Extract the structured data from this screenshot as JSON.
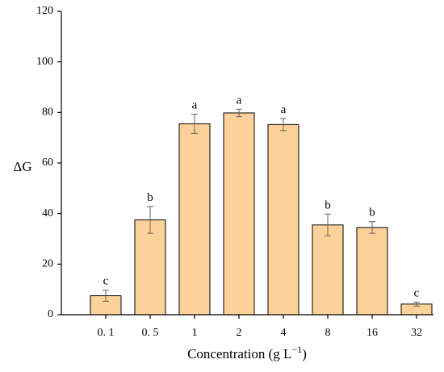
{
  "chart_data": {
    "type": "bar",
    "categories": [
      "0. 1",
      "0. 5",
      "1",
      "2",
      "4",
      "8",
      "16",
      "32"
    ],
    "values": [
      7.5,
      37.5,
      75.5,
      79.8,
      75.2,
      35.5,
      34.5,
      4.2
    ],
    "errors": [
      2.2,
      5.3,
      3.8,
      1.5,
      2.4,
      4.3,
      2.3,
      0.8
    ],
    "significance": [
      "c",
      "b",
      "a",
      "a",
      "a",
      "b",
      "b",
      "c"
    ],
    "xlabel": "Concentration (g L",
    "xlabel_sup": "−1",
    "xlabel_close": ")",
    "ylabel": "ΔG",
    "ylim": [
      0,
      120
    ],
    "yticks": [
      "0",
      "20",
      "40",
      "60",
      "80",
      "100",
      "120"
    ],
    "bar_color": "#fdd29a",
    "bar_edge_color": "#000000",
    "grid": false,
    "legend": "none"
  }
}
